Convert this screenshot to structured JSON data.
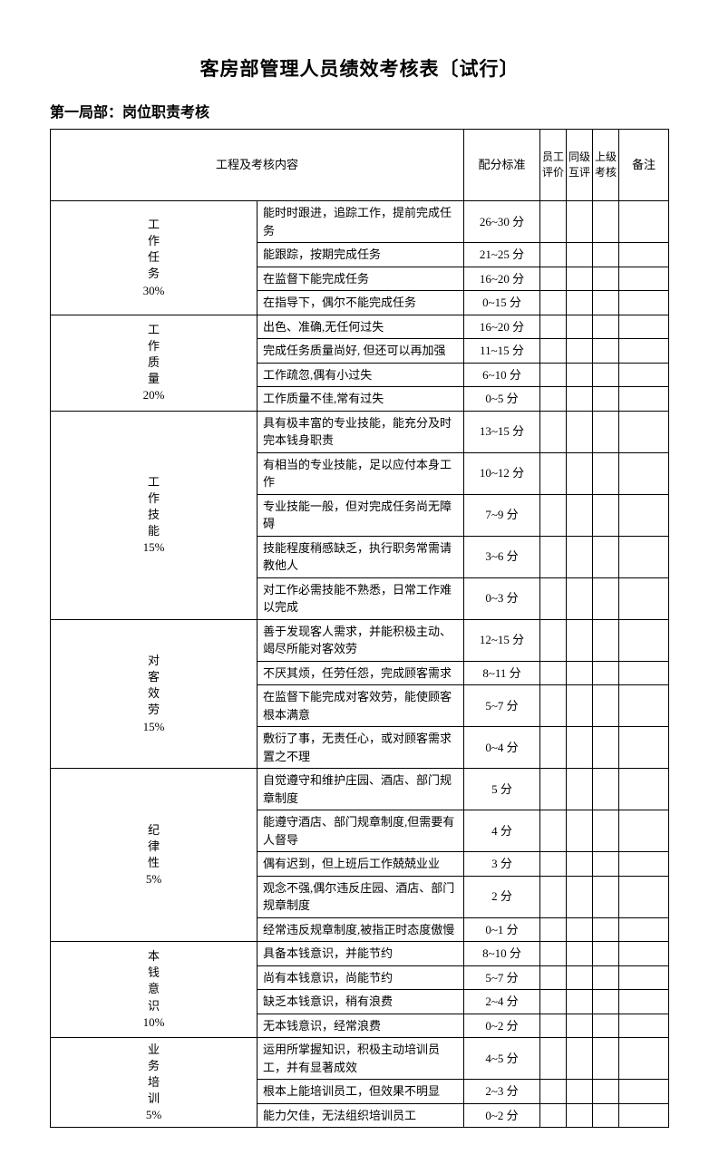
{
  "title": "客房部管理人员绩效考核表〔试行〕",
  "sectionTitle": "第一局部：岗位职责考核",
  "headers": {
    "content": "工程及考核内容",
    "standard": "配分标准",
    "employee": "员工评价",
    "peer": "同级互评",
    "superior": "上级考核",
    "remark": "备注"
  },
  "categories": [
    {
      "name": "工作任务",
      "weight": "30%",
      "rows": [
        {
          "content": "能时时跟进，追踪工作，提前完成任务",
          "score": "26~30 分"
        },
        {
          "content": "能跟踪，按期完成任务",
          "score": "21~25 分"
        },
        {
          "content": "在监督下能完成任务",
          "score": "16~20 分"
        },
        {
          "content": "在指导下，偶尔不能完成任务",
          "score": "0~15 分"
        }
      ]
    },
    {
      "name": "工作质量",
      "weight": "20%",
      "rows": [
        {
          "content": "出色、准确,无任何过失",
          "score": "16~20 分"
        },
        {
          "content": "完成任务质量尚好, 但还可以再加强",
          "score": "11~15 分"
        },
        {
          "content": "工作疏忽,偶有小过失",
          "score": "6~10 分"
        },
        {
          "content": "工作质量不佳,常有过失",
          "score": "0~5 分"
        }
      ]
    },
    {
      "name": "工作技能",
      "weight": "15%",
      "rows": [
        {
          "content": "具有极丰富的专业技能，能充分及时完本钱身职责",
          "score": "13~15 分"
        },
        {
          "content": "有相当的专业技能，足以应付本身工作",
          "score": "10~12 分"
        },
        {
          "content": "专业技能一般，但对完成任务尚无障碍",
          "score": "7~9 分"
        },
        {
          "content": "技能程度稍感缺乏，执行职务常需请教他人",
          "score": "3~6 分"
        },
        {
          "content": "对工作必需技能不熟悉，日常工作难以完成",
          "score": "0~3 分"
        }
      ]
    },
    {
      "name": "对客效劳",
      "weight": "15%",
      "rows": [
        {
          "content": "善于发现客人需求，并能积极主动、竭尽所能对客效劳",
          "score": "12~15 分"
        },
        {
          "content": "不厌其烦，任劳任怨，完成顾客需求",
          "score": "8~11 分"
        },
        {
          "content": "在监督下能完成对客效劳，能使顾客根本满意",
          "score": "5~7 分"
        },
        {
          "content": "敷衍了事，无责任心，或对顾客需求置之不理",
          "score": "0~4 分"
        }
      ]
    },
    {
      "name": "纪律性",
      "weight": "5%",
      "rows": [
        {
          "content": "自觉遵守和维护庄园、酒店、部门规章制度",
          "score": "5 分"
        },
        {
          "content": "能遵守酒店、部门规章制度,但需要有人督导",
          "score": "4 分"
        },
        {
          "content": "偶有迟到，但上班后工作兢兢业业",
          "score": "3 分"
        },
        {
          "content": "观念不强,偶尔违反庄园、酒店、部门规章制度",
          "score": "2 分"
        },
        {
          "content": "经常违反规章制度,被指正时态度傲慢",
          "score": "0~1 分"
        }
      ]
    },
    {
      "name": "本钱意识",
      "weight": "10%",
      "rows": [
        {
          "content": "具备本钱意识，并能节约",
          "score": "8~10 分"
        },
        {
          "content": "尚有本钱意识，尚能节约",
          "score": "5~7 分"
        },
        {
          "content": "缺乏本钱意识，稍有浪费",
          "score": "2~4 分"
        },
        {
          "content": "无本钱意识，经常浪费",
          "score": "0~2 分"
        }
      ]
    },
    {
      "name": "业务培训",
      "weight": "5%",
      "rows": [
        {
          "content": "运用所掌握知识，积极主动培训员工，并有显著成效",
          "score": "4~5 分"
        },
        {
          "content": "根本上能培训员工，但效果不明显",
          "score": "2~3 分"
        },
        {
          "content": "能力欠佳，无法组织培训员工",
          "score": "0~2 分"
        }
      ]
    }
  ]
}
